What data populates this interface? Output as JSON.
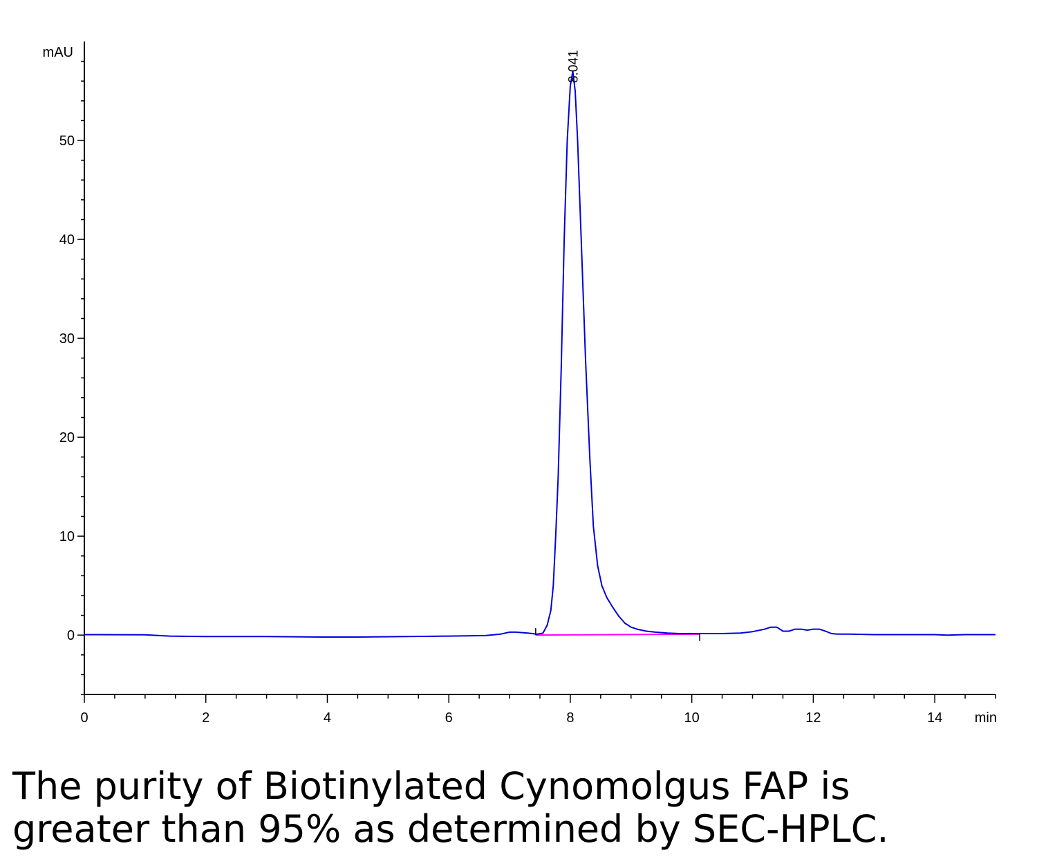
{
  "chart_data": {
    "type": "line",
    "xlabel": "min",
    "ylabel": "mAU",
    "xlim": [
      0,
      15
    ],
    "ylim": [
      -6,
      60
    ],
    "x_ticks": [
      0,
      2,
      4,
      6,
      8,
      10,
      12,
      14
    ],
    "y_ticks": [
      0,
      10,
      20,
      30,
      40,
      50
    ],
    "peak_annotation": {
      "label": "8.041",
      "x": 8.041,
      "y": 57
    },
    "colors": {
      "trace": "#0000dd",
      "baseline": "#ff00ff",
      "axis": "#000000"
    },
    "baseline_segment": {
      "x": [
        7.43,
        10.13
      ],
      "y": [
        0,
        0.1
      ]
    },
    "series": [
      {
        "x": [
          0,
          1,
          1.4,
          2,
          3,
          3.9,
          4.5,
          5.3,
          6,
          6.6,
          6.85,
          7.0,
          7.1,
          7.3,
          7.45,
          7.55,
          7.62,
          7.68,
          7.72,
          7.76,
          7.8,
          7.85,
          7.9,
          7.95,
          8.0,
          8.041,
          8.08,
          8.12,
          8.18,
          8.25,
          8.32,
          8.38,
          8.45,
          8.52,
          8.6,
          8.7,
          8.8,
          8.9,
          9.0,
          9.1,
          9.25,
          9.4,
          9.6,
          9.8,
          10.0,
          10.2,
          10.5,
          10.8,
          11.0,
          11.2,
          11.3,
          11.4,
          11.5,
          11.6,
          11.7,
          11.8,
          11.9,
          12.0,
          12.1,
          12.2,
          12.3,
          12.4,
          12.6,
          13,
          13.5,
          14,
          14.2,
          14.5,
          15
        ],
        "y": [
          0.05,
          0.03,
          -0.1,
          -0.15,
          -0.15,
          -0.2,
          -0.2,
          -0.15,
          -0.1,
          -0.05,
          0.1,
          0.3,
          0.3,
          0.2,
          0.1,
          0.2,
          1.0,
          2.5,
          5.0,
          10.0,
          16.0,
          27.0,
          40.0,
          50.0,
          55.5,
          57.0,
          55.0,
          50.0,
          40.0,
          28.0,
          18.0,
          11.0,
          7.0,
          5.0,
          3.8,
          2.8,
          1.9,
          1.2,
          0.8,
          0.6,
          0.4,
          0.3,
          0.2,
          0.15,
          0.15,
          0.15,
          0.15,
          0.2,
          0.35,
          0.6,
          0.8,
          0.8,
          0.4,
          0.4,
          0.6,
          0.6,
          0.5,
          0.6,
          0.6,
          0.4,
          0.15,
          0.1,
          0.1,
          0.05,
          0.05,
          0.05,
          0.0,
          0.05,
          0.05
        ]
      }
    ]
  },
  "caption": {
    "line1": "The purity of Biotinylated Cynomolgus FAP is",
    "line2": "greater than 95% as determined by SEC-HPLC."
  }
}
